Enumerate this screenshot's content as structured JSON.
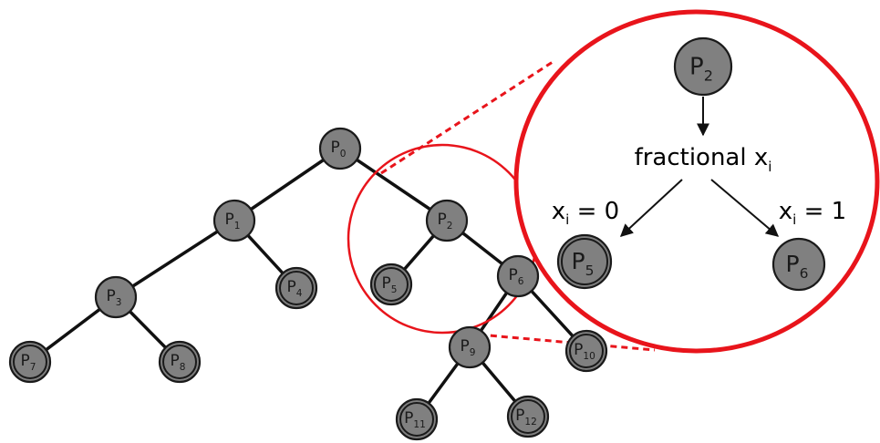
{
  "tree": {
    "nodes": [
      {
        "id": "p0",
        "base": "P",
        "sub": "0",
        "pruned": false
      },
      {
        "id": "p1",
        "base": "P",
        "sub": "1",
        "pruned": false
      },
      {
        "id": "p2",
        "base": "P",
        "sub": "2",
        "pruned": false
      },
      {
        "id": "p3",
        "base": "P",
        "sub": "3",
        "pruned": false
      },
      {
        "id": "p4",
        "base": "P",
        "sub": "4",
        "pruned": true
      },
      {
        "id": "p5",
        "base": "P",
        "sub": "5",
        "pruned": true
      },
      {
        "id": "p6",
        "base": "P",
        "sub": "6",
        "pruned": false
      },
      {
        "id": "p7",
        "base": "P",
        "sub": "7",
        "pruned": true
      },
      {
        "id": "p8",
        "base": "P",
        "sub": "8",
        "pruned": true
      },
      {
        "id": "p9",
        "base": "P",
        "sub": "9",
        "pruned": false
      },
      {
        "id": "p10",
        "base": "P",
        "sub": "10",
        "pruned": true
      },
      {
        "id": "p11",
        "base": "P",
        "sub": "11",
        "pruned": true
      },
      {
        "id": "p12",
        "base": "P",
        "sub": "12",
        "pruned": true
      }
    ],
    "edges": [
      [
        "p0",
        "p1"
      ],
      [
        "p0",
        "p2"
      ],
      [
        "p1",
        "p3"
      ],
      [
        "p1",
        "p4"
      ],
      [
        "p2",
        "p5"
      ],
      [
        "p2",
        "p6"
      ],
      [
        "p3",
        "p7"
      ],
      [
        "p3",
        "p8"
      ],
      [
        "p6",
        "p9"
      ],
      [
        "p6",
        "p10"
      ],
      [
        "p9",
        "p11"
      ],
      [
        "p9",
        "p12"
      ]
    ]
  },
  "zoom": {
    "parent": {
      "base": "P",
      "sub": "2"
    },
    "branch_label": {
      "text": "fractional x",
      "sub": "i"
    },
    "left_child": {
      "base": "P",
      "sub": "5",
      "pruned": true
    },
    "right_child": {
      "base": "P",
      "sub": "6",
      "pruned": false
    },
    "left_branch": {
      "var": "x",
      "sub": "i",
      "rel": " = 0"
    },
    "right_branch": {
      "var": "x",
      "sub": "i",
      "rel": " = 1"
    }
  },
  "colors": {
    "node_fill": "#808080",
    "node_stroke": "#1a1a1a",
    "edge": "#111111",
    "highlight": "#e8141b",
    "background": "#ffffff"
  }
}
